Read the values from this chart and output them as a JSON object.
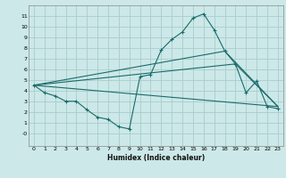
{
  "xlabel": "Humidex (Indice chaleur)",
  "bg_color": "#cce8e8",
  "grid_color": "#aacccc",
  "line_color": "#1a6b6b",
  "xlim": [
    -0.5,
    23.5
  ],
  "ylim": [
    -1.2,
    12
  ],
  "yticks": [
    0,
    1,
    2,
    3,
    4,
    5,
    6,
    7,
    8,
    9,
    10,
    11
  ],
  "xticks": [
    0,
    1,
    2,
    3,
    4,
    5,
    6,
    7,
    8,
    9,
    10,
    11,
    12,
    13,
    14,
    15,
    16,
    17,
    18,
    19,
    20,
    21,
    22,
    23
  ],
  "line1_x": [
    0,
    1,
    2,
    3,
    4,
    5,
    6,
    7,
    8,
    9,
    10,
    11,
    12,
    13,
    14,
    15,
    16,
    17,
    18,
    19,
    20,
    21,
    22,
    23
  ],
  "line1_y": [
    4.5,
    3.8,
    3.5,
    3.0,
    3.0,
    2.2,
    1.5,
    1.3,
    0.6,
    0.4,
    5.3,
    5.5,
    7.8,
    8.8,
    9.5,
    10.8,
    11.2,
    9.7,
    7.7,
    6.5,
    3.8,
    4.9,
    2.5,
    2.3
  ],
  "line3_x": [
    0,
    23
  ],
  "line3_y": [
    4.5,
    2.5
  ],
  "line4_x": [
    0,
    19,
    23
  ],
  "line4_y": [
    4.5,
    6.5,
    2.5
  ],
  "line5_x": [
    0,
    18,
    23
  ],
  "line5_y": [
    4.5,
    7.7,
    2.5
  ]
}
